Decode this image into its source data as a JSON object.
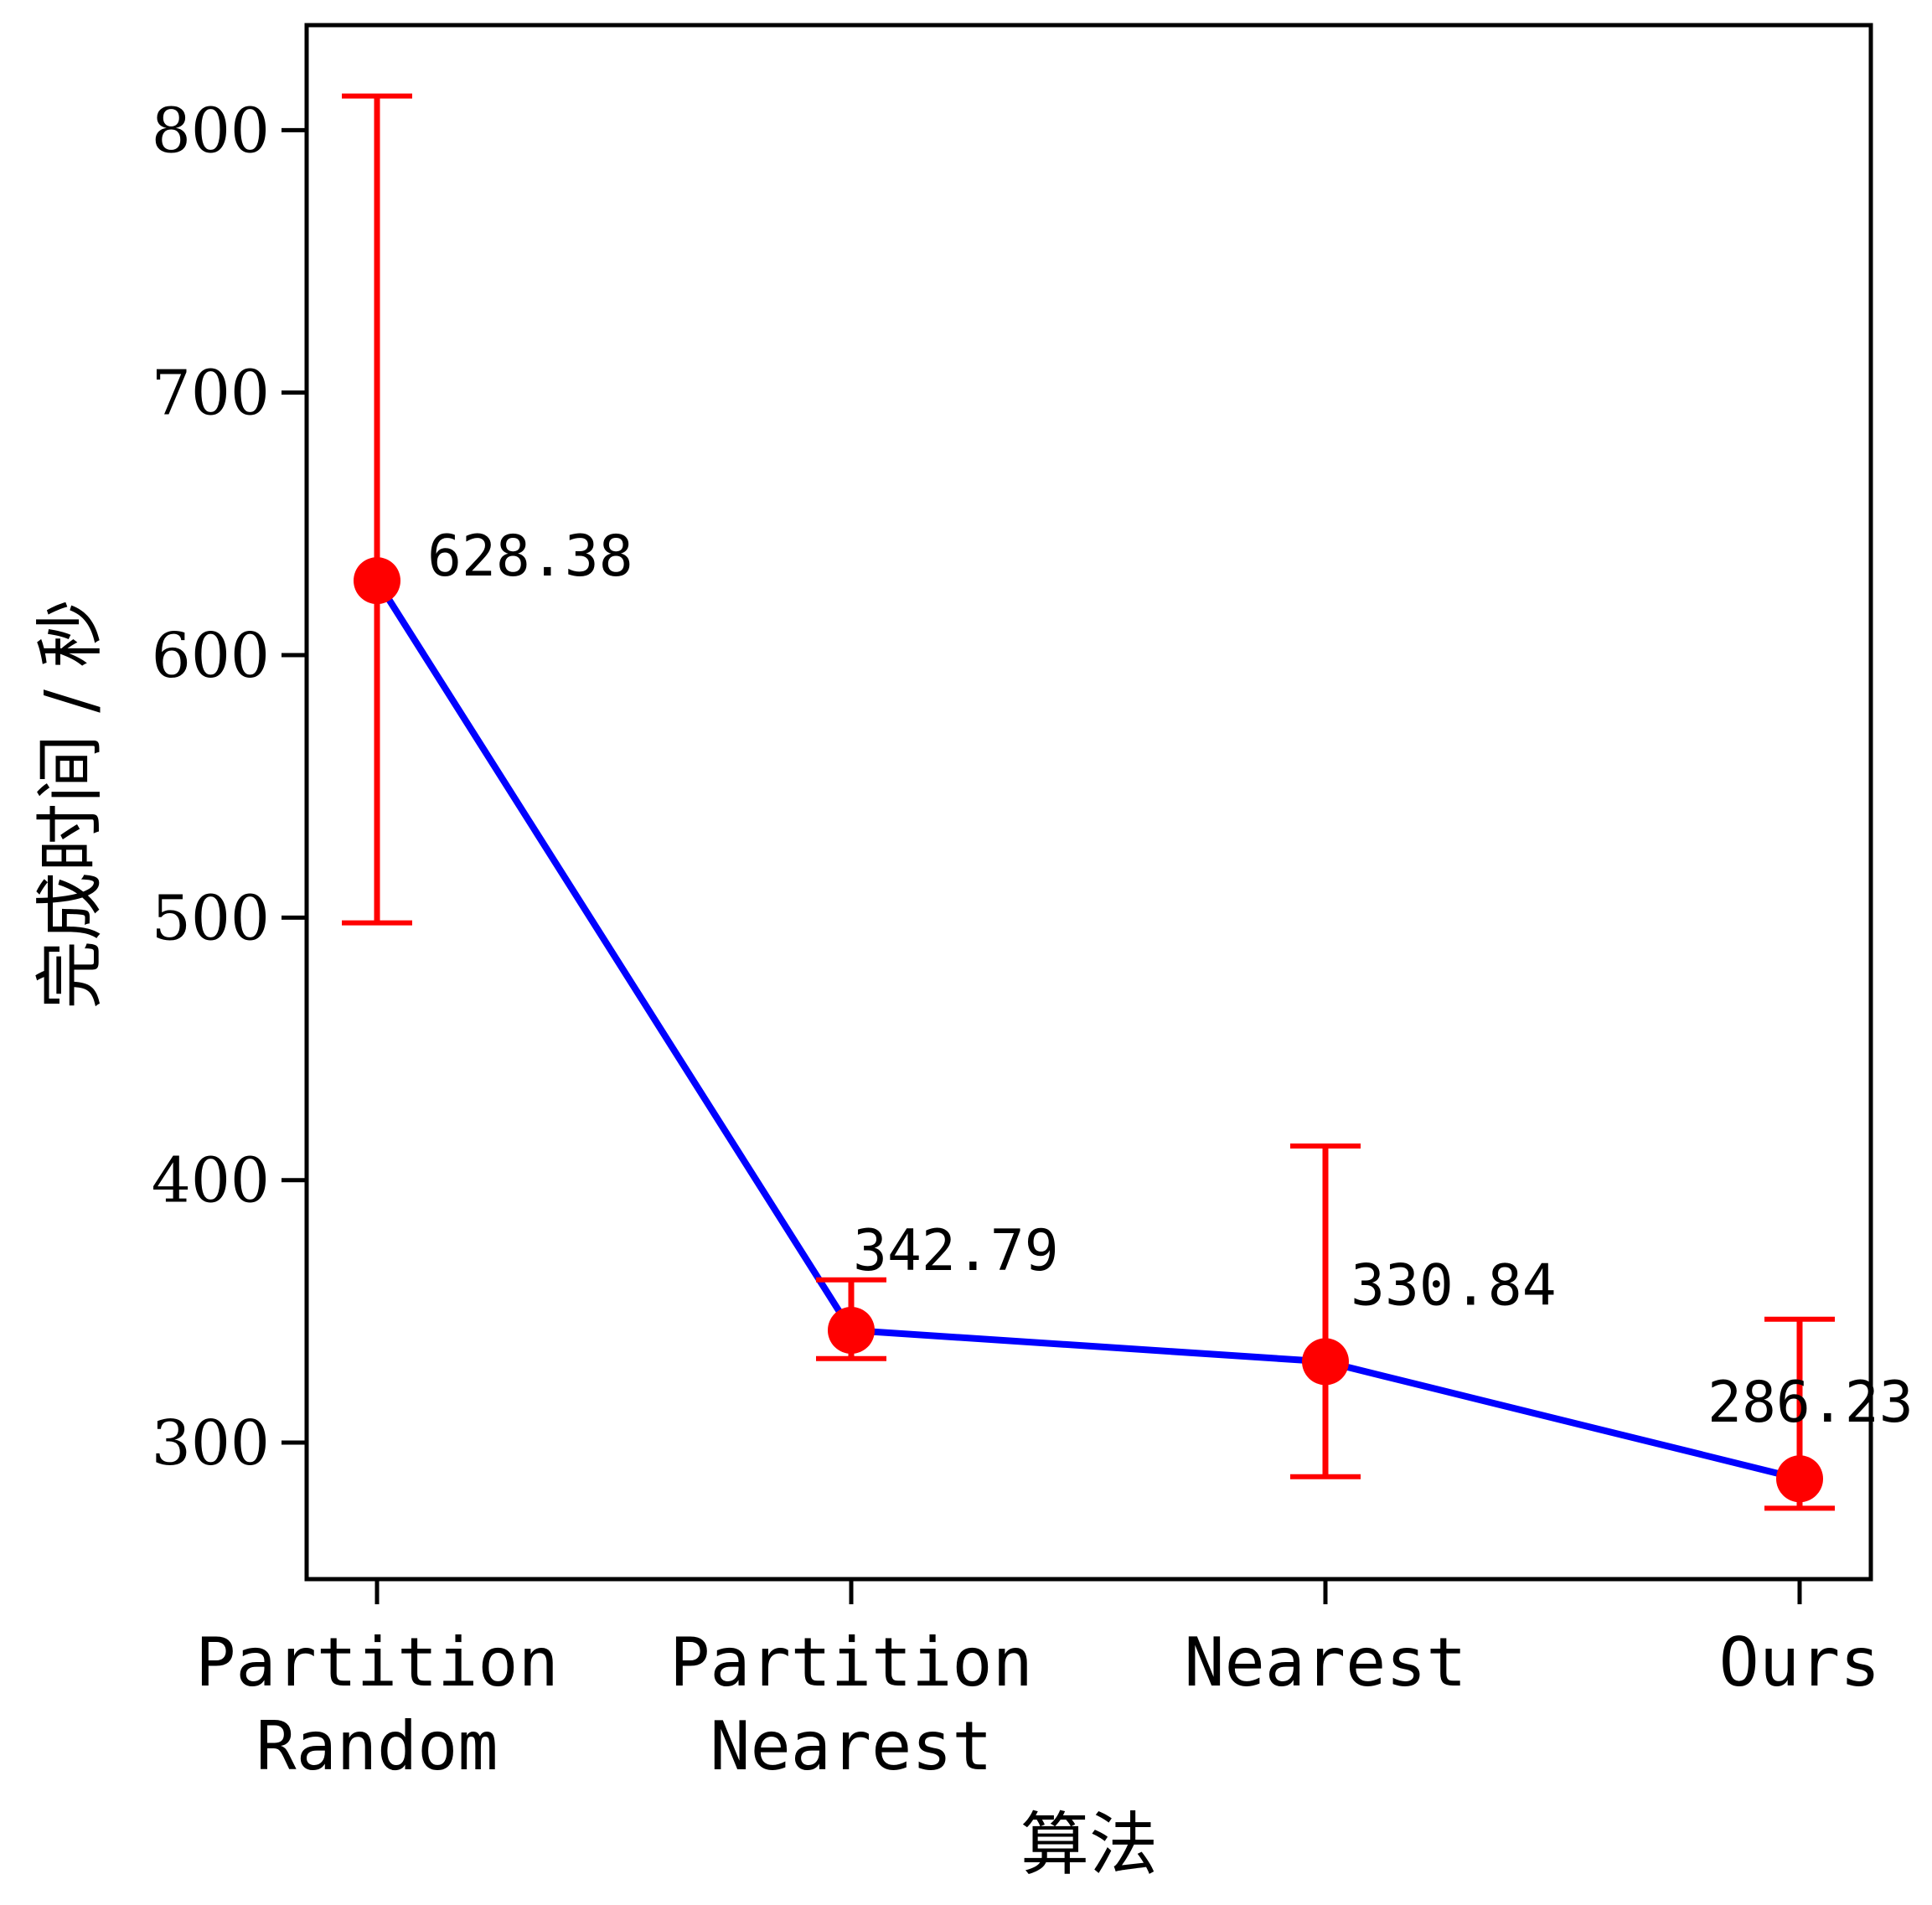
{
  "chart_data": {
    "type": "line",
    "title": "",
    "xlabel": "算法",
    "ylabel": "完成时间 / 秒",
    "categories": [
      [
        "Partition",
        "Random"
      ],
      [
        "Partition",
        "Nearest"
      ],
      [
        "Nearest"
      ],
      [
        "Ours"
      ]
    ],
    "series": [
      {
        "values": [
          628.38,
          342.79,
          330.84,
          286.23
        ],
        "err_low": [
          498,
          332,
          287,
          275
        ],
        "err_high": [
          813,
          362,
          413,
          347
        ],
        "labels": [
          "628.38",
          "342.79",
          "330.84",
          "286.23"
        ],
        "line_color": "#0000ff",
        "marker_color": "#ff0000",
        "errorbar_color": "#ff0000"
      }
    ],
    "yticks": [
      300,
      400,
      500,
      600,
      700,
      800
    ],
    "ylim": [
      248,
      840
    ],
    "grid": false,
    "legend": "none"
  }
}
